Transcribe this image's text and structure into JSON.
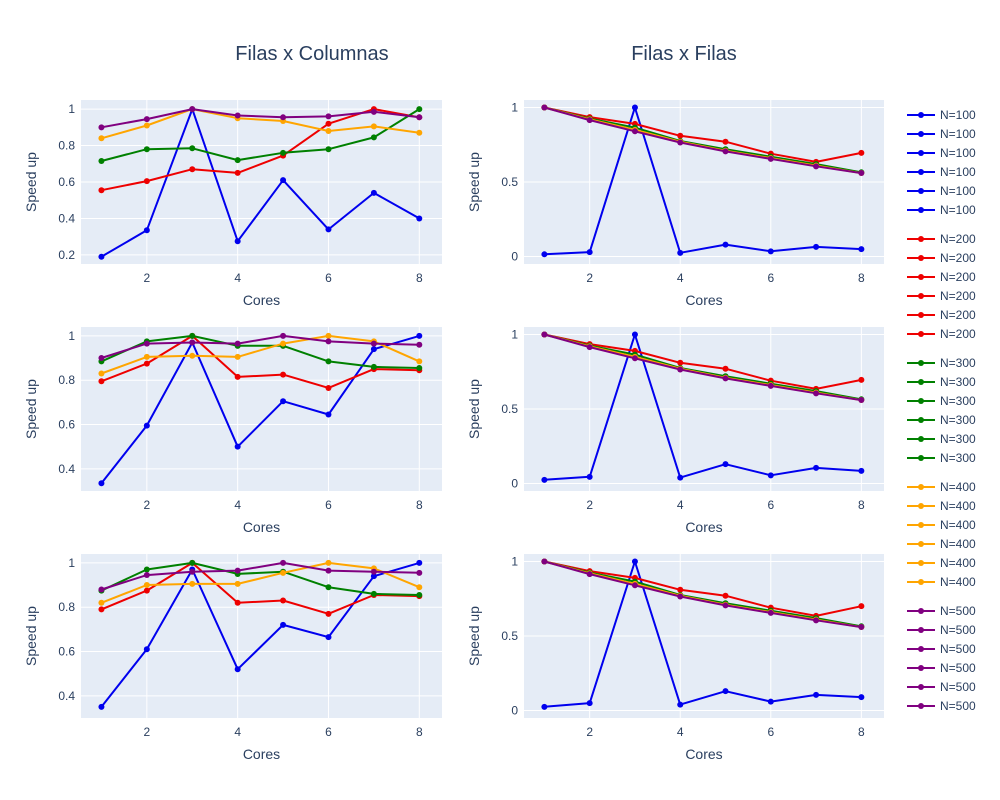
{
  "titles": {
    "left": "Filas x Columnas",
    "right": "Filas x Filas"
  },
  "colors": {
    "N=100": "#0000ee",
    "N=200": "#ee0000",
    "N=300": "#008000",
    "N=400": "#ffa500",
    "N=500": "#800080",
    "plot_bg": "#e5ecf6",
    "grid": "#ffffff",
    "text": "#2a3f5f"
  },
  "legend": {
    "groups": [
      {
        "label": "N=100",
        "count": 6
      },
      {
        "label": "N=200",
        "count": 6
      },
      {
        "label": "N=300",
        "count": 6
      },
      {
        "label": "N=400",
        "count": 6
      },
      {
        "label": "N=500",
        "count": 6
      }
    ]
  },
  "chart_data": [
    {
      "type": "line",
      "panel": "row1-left",
      "xlabel": "Cores",
      "ylabel": "Speed up",
      "xlim": [
        0.55,
        8.5
      ],
      "ylim": [
        0.15,
        1.05
      ],
      "xticks": [
        2,
        4,
        6,
        8
      ],
      "yticks": [
        0.2,
        0.4,
        0.6,
        0.8,
        1
      ],
      "x": [
        1,
        2,
        3,
        4,
        5,
        6,
        7,
        8
      ],
      "series": [
        {
          "name": "N=100",
          "values": [
            0.19,
            0.335,
            1.0,
            0.275,
            0.61,
            0.34,
            0.54,
            0.4
          ]
        },
        {
          "name": "N=200",
          "values": [
            0.555,
            0.605,
            0.67,
            0.65,
            0.745,
            0.92,
            1.0,
            0.955
          ]
        },
        {
          "name": "N=300",
          "values": [
            0.715,
            0.78,
            0.785,
            0.72,
            0.76,
            0.78,
            0.845,
            1.0
          ]
        },
        {
          "name": "N=400",
          "values": [
            0.84,
            0.91,
            1.0,
            0.95,
            0.935,
            0.88,
            0.905,
            0.87
          ]
        },
        {
          "name": "N=500",
          "values": [
            0.9,
            0.945,
            1.0,
            0.965,
            0.955,
            0.96,
            0.985,
            0.955
          ]
        }
      ]
    },
    {
      "type": "line",
      "panel": "row1-right",
      "xlabel": "Cores",
      "ylabel": "Speed up",
      "xlim": [
        0.55,
        8.5
      ],
      "ylim": [
        -0.05,
        1.05
      ],
      "xticks": [
        2,
        4,
        6,
        8
      ],
      "yticks": [
        0,
        0.5,
        1
      ],
      "x": [
        1,
        2,
        3,
        4,
        5,
        6,
        7,
        8
      ],
      "series": [
        {
          "name": "N=100",
          "values": [
            0.015,
            0.03,
            1.0,
            0.025,
            0.08,
            0.035,
            0.065,
            0.05
          ]
        },
        {
          "name": "N=200",
          "values": [
            1.0,
            0.935,
            0.89,
            0.81,
            0.77,
            0.69,
            0.635,
            0.695
          ]
        },
        {
          "name": "N=300",
          "values": [
            1.0,
            0.925,
            0.865,
            0.775,
            0.72,
            0.67,
            0.62,
            0.565
          ]
        },
        {
          "name": "N=400",
          "values": [
            1.0,
            0.92,
            0.85,
            0.77,
            0.71,
            0.66,
            0.61,
            0.56
          ]
        },
        {
          "name": "N=500",
          "values": [
            1.0,
            0.915,
            0.84,
            0.765,
            0.705,
            0.655,
            0.605,
            0.56
          ]
        }
      ]
    },
    {
      "type": "line",
      "panel": "row2-left",
      "xlabel": "Cores",
      "ylabel": "Speed up",
      "xlim": [
        0.55,
        8.5
      ],
      "ylim": [
        0.3,
        1.04
      ],
      "xticks": [
        2,
        4,
        6,
        8
      ],
      "yticks": [
        0.4,
        0.6,
        0.8,
        1
      ],
      "x": [
        1,
        2,
        3,
        4,
        5,
        6,
        7,
        8
      ],
      "series": [
        {
          "name": "N=100",
          "values": [
            0.335,
            0.595,
            0.97,
            0.5,
            0.705,
            0.645,
            0.94,
            1.0
          ]
        },
        {
          "name": "N=200",
          "values": [
            0.795,
            0.875,
            1.0,
            0.815,
            0.825,
            0.765,
            0.85,
            0.845
          ]
        },
        {
          "name": "N=300",
          "values": [
            0.885,
            0.975,
            1.0,
            0.955,
            0.955,
            0.885,
            0.86,
            0.855
          ]
        },
        {
          "name": "N=400",
          "values": [
            0.83,
            0.905,
            0.91,
            0.905,
            0.965,
            1.0,
            0.975,
            0.885
          ]
        },
        {
          "name": "N=500",
          "values": [
            0.9,
            0.965,
            0.97,
            0.965,
            1.0,
            0.975,
            0.965,
            0.96
          ]
        }
      ]
    },
    {
      "type": "line",
      "panel": "row2-right",
      "xlabel": "Cores",
      "ylabel": "Speed up",
      "xlim": [
        0.55,
        8.5
      ],
      "ylim": [
        -0.05,
        1.05
      ],
      "xticks": [
        2,
        4,
        6,
        8
      ],
      "yticks": [
        0,
        0.5,
        1
      ],
      "x": [
        1,
        2,
        3,
        4,
        5,
        6,
        7,
        8
      ],
      "series": [
        {
          "name": "N=100",
          "values": [
            0.025,
            0.045,
            1.0,
            0.04,
            0.13,
            0.055,
            0.105,
            0.085
          ]
        },
        {
          "name": "N=200",
          "values": [
            1.0,
            0.935,
            0.89,
            0.81,
            0.77,
            0.69,
            0.635,
            0.695
          ]
        },
        {
          "name": "N=300",
          "values": [
            1.0,
            0.925,
            0.865,
            0.775,
            0.72,
            0.67,
            0.62,
            0.565
          ]
        },
        {
          "name": "N=400",
          "values": [
            1.0,
            0.92,
            0.85,
            0.77,
            0.71,
            0.66,
            0.61,
            0.56
          ]
        },
        {
          "name": "N=500",
          "values": [
            1.0,
            0.915,
            0.84,
            0.765,
            0.705,
            0.655,
            0.605,
            0.56
          ]
        }
      ]
    },
    {
      "type": "line",
      "panel": "row3-left",
      "xlabel": "Cores",
      "ylabel": "Speed up",
      "xlim": [
        0.55,
        8.5
      ],
      "ylim": [
        0.3,
        1.04
      ],
      "xticks": [
        2,
        4,
        6,
        8
      ],
      "yticks": [
        0.4,
        0.6,
        0.8,
        1
      ],
      "x": [
        1,
        2,
        3,
        4,
        5,
        6,
        7,
        8
      ],
      "series": [
        {
          "name": "N=100",
          "values": [
            0.35,
            0.61,
            0.97,
            0.52,
            0.72,
            0.665,
            0.94,
            1.0
          ]
        },
        {
          "name": "N=200",
          "values": [
            0.79,
            0.875,
            1.0,
            0.82,
            0.83,
            0.77,
            0.855,
            0.85
          ]
        },
        {
          "name": "N=300",
          "values": [
            0.875,
            0.97,
            1.0,
            0.95,
            0.96,
            0.89,
            0.86,
            0.855
          ]
        },
        {
          "name": "N=400",
          "values": [
            0.82,
            0.9,
            0.905,
            0.905,
            0.955,
            1.0,
            0.975,
            0.89
          ]
        },
        {
          "name": "N=500",
          "values": [
            0.88,
            0.945,
            0.96,
            0.965,
            1.0,
            0.965,
            0.96,
            0.955
          ]
        }
      ]
    },
    {
      "type": "line",
      "panel": "row3-right",
      "xlabel": "Cores",
      "ylabel": "Speed up",
      "xlim": [
        0.55,
        8.5
      ],
      "ylim": [
        -0.05,
        1.05
      ],
      "xticks": [
        2,
        4,
        6,
        8
      ],
      "yticks": [
        0,
        0.5,
        1
      ],
      "x": [
        1,
        2,
        3,
        4,
        5,
        6,
        7,
        8
      ],
      "series": [
        {
          "name": "N=100",
          "values": [
            0.025,
            0.05,
            1.0,
            0.04,
            0.13,
            0.06,
            0.105,
            0.09
          ]
        },
        {
          "name": "N=200",
          "values": [
            1.0,
            0.935,
            0.89,
            0.81,
            0.77,
            0.69,
            0.635,
            0.7
          ]
        },
        {
          "name": "N=300",
          "values": [
            1.0,
            0.925,
            0.865,
            0.775,
            0.72,
            0.67,
            0.62,
            0.565
          ]
        },
        {
          "name": "N=400",
          "values": [
            1.0,
            0.92,
            0.85,
            0.77,
            0.71,
            0.66,
            0.61,
            0.56
          ]
        },
        {
          "name": "N=500",
          "values": [
            1.0,
            0.915,
            0.84,
            0.765,
            0.705,
            0.655,
            0.605,
            0.56
          ]
        }
      ]
    }
  ]
}
